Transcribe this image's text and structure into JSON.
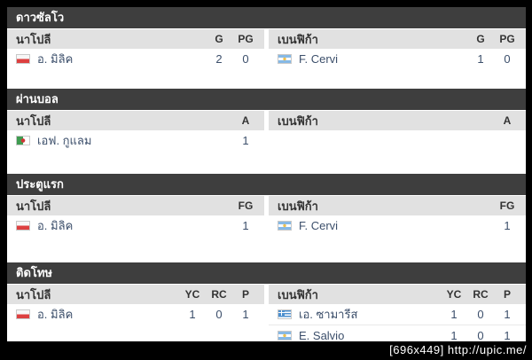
{
  "watermark": "[696x449] http://upic.me/",
  "colors": {
    "section_header_bg": "#3e3e3e",
    "column_header_bg": "#e1e1e1",
    "player_text": "#3c4f6b",
    "frame": "#000000"
  },
  "sections": [
    {
      "title": "ดาวซัลโว",
      "left": {
        "team": "นาโปลี",
        "columns": [
          "G",
          "PG"
        ],
        "rows": [
          {
            "flag": "pl",
            "flag_name": "poland-flag",
            "name": "อ. มิลิค",
            "values": [
              "2",
              "0"
            ]
          }
        ]
      },
      "right": {
        "team": "เบนฟิก้า",
        "columns": [
          "G",
          "PG"
        ],
        "rows": [
          {
            "flag": "ar",
            "flag_name": "argentina-flag",
            "name": "F. Cervi",
            "values": [
              "1",
              "0"
            ]
          }
        ]
      }
    },
    {
      "title": "ผ่านบอล",
      "left": {
        "team": "นาโปลี",
        "columns": [
          "A"
        ],
        "rows": [
          {
            "flag": "dz",
            "flag_name": "algeria-flag",
            "name": "เอฟ. กูแลม",
            "values": [
              "1"
            ]
          }
        ]
      },
      "right": {
        "team": "เบนฟิก้า",
        "columns": [
          "A"
        ],
        "rows": []
      }
    },
    {
      "title": "ประตูแรก",
      "left": {
        "team": "นาโปลี",
        "columns": [
          "FG"
        ],
        "rows": [
          {
            "flag": "pl",
            "flag_name": "poland-flag",
            "name": "อ. มิลิค",
            "values": [
              "1"
            ]
          }
        ]
      },
      "right": {
        "team": "เบนฟิก้า",
        "columns": [
          "FG"
        ],
        "rows": [
          {
            "flag": "ar",
            "flag_name": "argentina-flag",
            "name": "F. Cervi",
            "values": [
              "1"
            ]
          }
        ]
      }
    },
    {
      "title": "ติดโทษ",
      "left": {
        "team": "นาโปลี",
        "columns": [
          "YC",
          "RC",
          "P"
        ],
        "rows": [
          {
            "flag": "pl",
            "flag_name": "poland-flag",
            "name": "อ. มิลิค",
            "values": [
              "1",
              "0",
              "1"
            ]
          }
        ]
      },
      "right": {
        "team": "เบนฟิก้า",
        "columns": [
          "YC",
          "RC",
          "P"
        ],
        "rows": [
          {
            "flag": "gr",
            "flag_name": "greece-flag",
            "name": "เอ. ซามารีส",
            "values": [
              "1",
              "0",
              "1"
            ]
          },
          {
            "flag": "ar",
            "flag_name": "argentina-flag",
            "name": "E. Salvio",
            "values": [
              "1",
              "0",
              "1"
            ]
          }
        ]
      }
    }
  ]
}
